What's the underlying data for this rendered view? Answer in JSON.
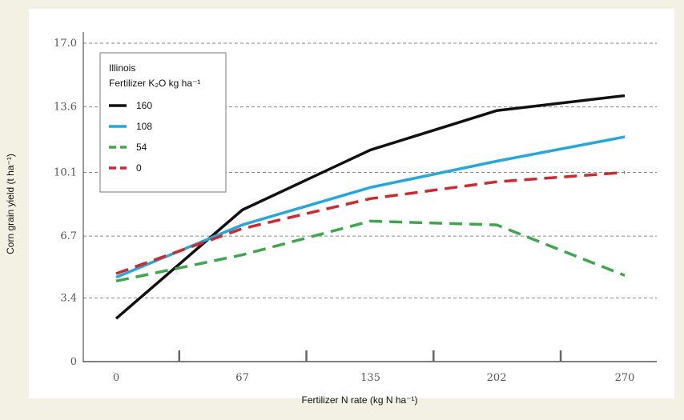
{
  "chart_data": {
    "type": "line",
    "xlabel": "Fertilizer N rate (kg N ha⁻¹)",
    "ylabel": "Corn grain yield (t ha⁻¹)",
    "x_ticks": [
      "0",
      "67",
      "135",
      "202",
      "270"
    ],
    "y_ticks": [
      "0",
      "3.4",
      "6.7",
      "10.1",
      "13.6",
      "17.0"
    ],
    "ylim": [
      0,
      17.0
    ],
    "legend": {
      "title_line1": "Illinois",
      "title_line2": "Fertilizer K₂O kg ha⁻¹",
      "placement": "top-left"
    },
    "grid": "horizontal dashed",
    "series": [
      {
        "name": "160",
        "color": "#111111",
        "dash": "solid",
        "x": [
          0,
          67,
          135,
          202,
          270
        ],
        "y": [
          2.3,
          8.1,
          11.3,
          13.4,
          14.2
        ]
      },
      {
        "name": "108",
        "color": "#1fa9e1",
        "dash": "solid",
        "x": [
          0,
          67,
          135,
          202,
          270
        ],
        "y": [
          4.5,
          7.3,
          9.3,
          10.7,
          12.0
        ]
      },
      {
        "name": "54",
        "color": "#3aaa49",
        "dash": "dashed",
        "x": [
          0,
          67,
          135,
          202,
          270
        ],
        "y": [
          4.3,
          5.7,
          7.5,
          7.3,
          4.6
        ]
      },
      {
        "name": "0",
        "color": "#d7262b",
        "dash": "dashed",
        "x": [
          0,
          67,
          135,
          202,
          270
        ],
        "y": [
          4.7,
          7.1,
          8.7,
          9.6,
          10.1
        ]
      }
    ]
  }
}
